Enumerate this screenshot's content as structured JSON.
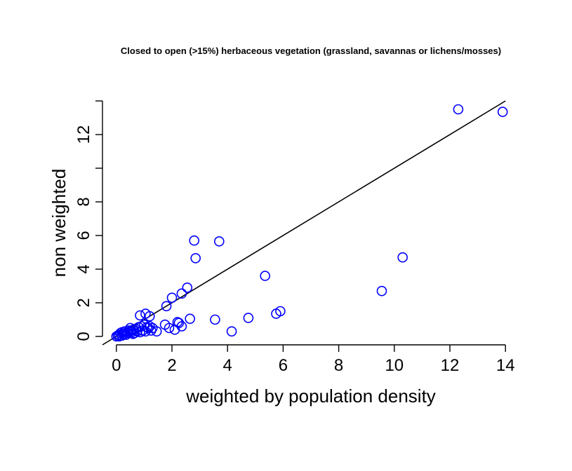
{
  "chart_data": {
    "type": "scatter",
    "title": "Closed to open (>15%) herbaceous vegetation (grassland, savannas or lichens/mosses)",
    "xlabel": "weighted by population density",
    "ylabel": "non weighted",
    "xlim": [
      -0.5,
      14.5
    ],
    "ylim": [
      -0.5,
      14.0
    ],
    "x_ticks": [
      0,
      2,
      4,
      6,
      8,
      10,
      12,
      14
    ],
    "x_tick_labels": [
      "0",
      "2",
      "4",
      "6",
      "8",
      "10",
      "12",
      "14"
    ],
    "y_ticks": [
      0,
      2,
      4,
      6,
      8,
      10,
      12,
      14
    ],
    "y_tick_labels": [
      "0",
      "2",
      "4",
      "6",
      "8",
      "",
      "12",
      ""
    ],
    "reference_line": {
      "slope": 1,
      "intercept": 0
    },
    "point_color": "#0000ff",
    "line_color": "#000000",
    "points": [
      [
        0.0,
        0.0
      ],
      [
        0.05,
        0.05
      ],
      [
        0.1,
        0.1
      ],
      [
        0.1,
        0.0
      ],
      [
        0.15,
        0.2
      ],
      [
        0.2,
        0.05
      ],
      [
        0.25,
        0.15
      ],
      [
        0.3,
        0.3
      ],
      [
        0.35,
        0.1
      ],
      [
        0.4,
        0.2
      ],
      [
        0.45,
        0.35
      ],
      [
        0.5,
        0.5
      ],
      [
        0.55,
        0.25
      ],
      [
        0.6,
        0.4
      ],
      [
        0.65,
        0.2
      ],
      [
        0.7,
        0.45
      ],
      [
        0.75,
        0.3
      ],
      [
        0.8,
        0.55
      ],
      [
        0.85,
        0.25
      ],
      [
        0.9,
        0.6
      ],
      [
        0.95,
        0.35
      ],
      [
        1.0,
        0.7
      ],
      [
        1.05,
        0.3
      ],
      [
        1.1,
        0.55
      ],
      [
        1.15,
        0.5
      ],
      [
        1.2,
        0.6
      ],
      [
        1.25,
        0.35
      ],
      [
        1.3,
        0.5
      ],
      [
        0.2,
        0.25
      ],
      [
        0.3,
        0.15
      ],
      [
        0.5,
        0.3
      ],
      [
        0.6,
        0.15
      ],
      [
        0.85,
        1.25
      ],
      [
        1.05,
        1.35
      ],
      [
        1.2,
        1.2
      ],
      [
        1.45,
        0.3
      ],
      [
        1.75,
        0.7
      ],
      [
        1.8,
        1.8
      ],
      [
        1.9,
        0.5
      ],
      [
        2.0,
        2.3
      ],
      [
        2.1,
        0.4
      ],
      [
        2.2,
        0.85
      ],
      [
        2.25,
        0.8
      ],
      [
        2.35,
        0.6
      ],
      [
        2.35,
        2.55
      ],
      [
        2.55,
        2.9
      ],
      [
        2.65,
        1.05
      ],
      [
        2.8,
        5.7
      ],
      [
        2.85,
        4.65
      ],
      [
        3.55,
        1.0
      ],
      [
        3.7,
        5.65
      ],
      [
        4.15,
        0.3
      ],
      [
        4.75,
        1.1
      ],
      [
        5.35,
        3.6
      ],
      [
        5.75,
        1.35
      ],
      [
        5.9,
        1.5
      ],
      [
        9.55,
        2.7
      ],
      [
        10.3,
        4.7
      ],
      [
        12.3,
        13.5
      ],
      [
        13.9,
        13.35
      ]
    ]
  }
}
